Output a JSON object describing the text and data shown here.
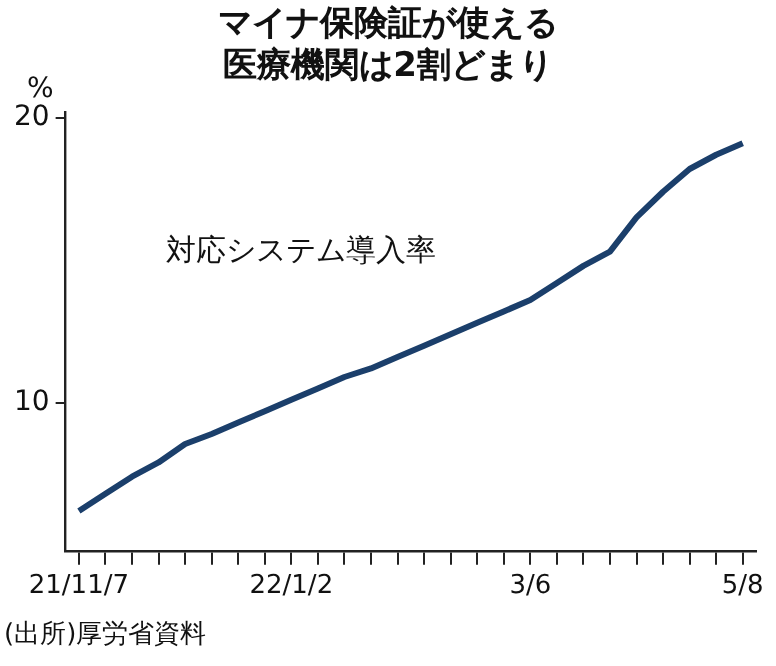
{
  "chart_data": {
    "type": "line",
    "title": "マイナ保険証が使える医療機関は2割どまり",
    "ylabel": "%",
    "categories": [
      "21/11/7",
      null,
      null,
      null,
      null,
      null,
      null,
      null,
      "22/1/2",
      null,
      null,
      null,
      null,
      null,
      null,
      null,
      null,
      "3/6",
      null,
      null,
      null,
      null,
      null,
      null,
      null,
      "5/8"
    ],
    "series": [
      {
        "name": "対応システム導入率",
        "color": "#1b3f6b",
        "values": [
          6.2,
          6.8,
          7.4,
          7.9,
          8.55,
          8.9,
          9.3,
          9.7,
          10.1,
          10.5,
          10.9,
          11.2,
          11.6,
          12.0,
          12.4,
          12.8,
          13.2,
          13.6,
          14.2,
          14.8,
          15.3,
          16.5,
          17.4,
          18.2,
          18.7,
          19.1
        ]
      }
    ],
    "ylim": [
      4.8,
      20.2
    ],
    "yticks": [
      10,
      20
    ],
    "grid": false,
    "legend": false,
    "marker": "none",
    "line_style": "solid",
    "annotations": [
      "(出所)厚労省資料"
    ]
  }
}
